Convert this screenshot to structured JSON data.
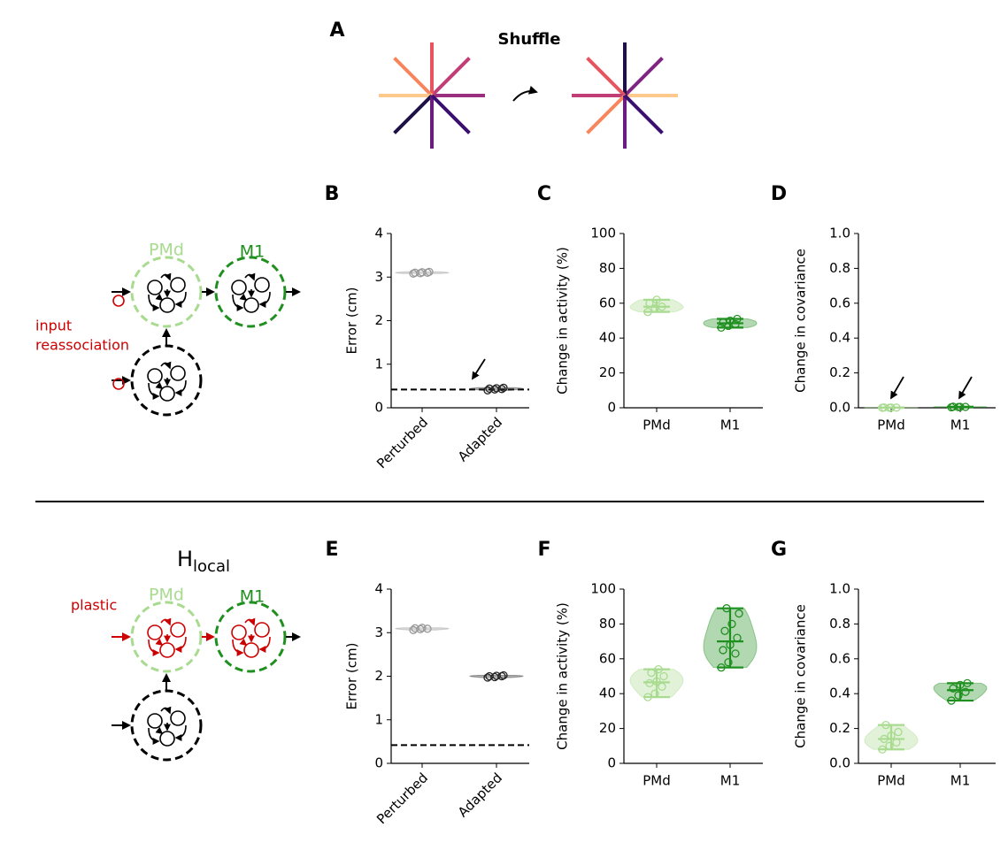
{
  "panel_labels": [
    "A",
    "B",
    "C",
    "D",
    "E",
    "F",
    "G"
  ],
  "shuffle": {
    "title": "Shuffle",
    "before_colors": [
      "#9c2e7f",
      "#c13d76",
      "#e6555f",
      "#f8865c",
      "#fec98d",
      "#1d1147",
      "#6a1c81",
      "#3b0f70"
    ],
    "after_colors": [
      "#fec98d",
      "#7e2482",
      "#1d1147",
      "#e6555f",
      "#c13d76",
      "#f8865c",
      "#6a1c81",
      "#3b0f70"
    ]
  },
  "diagrams": [
    {
      "nodes": [
        "PMd",
        "M1"
      ],
      "annotation": [
        "input",
        "reassociation"
      ]
    },
    {
      "title": "H",
      "title_subscript": "local",
      "nodes": [
        "PMd",
        "M1"
      ],
      "annotation": "plastic"
    }
  ],
  "chart_data": [
    {
      "type": "violin",
      "categories": [
        "Perturbed",
        "Adapted"
      ],
      "ylabel": "Error (cm)",
      "colors": [
        "#999999",
        "#222222"
      ],
      "values": [
        [
          3.08,
          3.09,
          3.1,
          3.1,
          3.11,
          3.12
        ],
        [
          0.4,
          0.42,
          0.43,
          0.44,
          0.45,
          0.46
        ]
      ],
      "hline": 0.42,
      "extrema": false,
      "ylim": [
        0,
        4
      ],
      "yticks": [
        0,
        1,
        2,
        3,
        4
      ]
    },
    {
      "type": "violin",
      "categories": [
        "PMd",
        "M1"
      ],
      "ylabel": "Change in activity (%)",
      "colors": [
        "#a8db8f",
        "#1f8f1f"
      ],
      "values": [
        [
          55,
          57,
          58,
          60,
          62
        ],
        [
          46,
          47,
          48,
          49,
          50,
          51
        ]
      ],
      "extrema": true,
      "ylim": [
        0,
        100
      ],
      "yticks": [
        0,
        20,
        40,
        60,
        80,
        100
      ]
    },
    {
      "type": "violin",
      "categories": [
        "PMd",
        "M1"
      ],
      "ylabel": "Change in covariance",
      "colors": [
        "#a8db8f",
        "#1f8f1f"
      ],
      "values": [
        [
          0,
          0,
          0.001,
          0.002,
          0.001
        ],
        [
          0.003,
          0.004,
          0.005,
          0.006,
          0.005
        ]
      ],
      "extrema": true,
      "ylim": [
        0,
        1
      ],
      "yticks": [
        {
          "value": 0,
          "label": "0.0"
        },
        {
          "value": 0.2,
          "label": "0.2"
        },
        {
          "value": 0.4,
          "label": "0.4"
        },
        {
          "value": 0.6,
          "label": "0.6"
        },
        {
          "value": 0.8,
          "label": "0.8"
        },
        {
          "value": 1,
          "label": "1.0"
        }
      ]
    },
    {
      "type": "violin",
      "categories": [
        "Perturbed",
        "Adapted"
      ],
      "ylabel": "Error (cm)",
      "colors": [
        "#999999",
        "#222222"
      ],
      "values": [
        [
          3.06,
          3.08,
          3.09,
          3.1,
          3.11
        ],
        [
          1.97,
          1.98,
          2.0,
          2.0,
          2.01,
          2.02
        ]
      ],
      "hline": 0.42,
      "extrema": false,
      "ylim": [
        0,
        4
      ],
      "yticks": [
        0,
        1,
        2,
        3,
        4
      ]
    },
    {
      "type": "violin",
      "categories": [
        "PMd",
        "M1"
      ],
      "ylabel": "Change in activity (%)",
      "colors": [
        "#a8db8f",
        "#1f8f1f"
      ],
      "values": [
        [
          38,
          40,
          44,
          46,
          47,
          50,
          52,
          54
        ],
        [
          55,
          58,
          63,
          65,
          68,
          72,
          76,
          80,
          86,
          89
        ]
      ],
      "extrema": true,
      "ylim": [
        0,
        100
      ],
      "yticks": [
        0,
        20,
        40,
        60,
        80,
        100
      ]
    },
    {
      "type": "violin",
      "categories": [
        "PMd",
        "M1"
      ],
      "ylabel": "Change in covariance",
      "colors": [
        "#a8db8f",
        "#1f8f1f"
      ],
      "values": [
        [
          0.08,
          0.1,
          0.12,
          0.14,
          0.16,
          0.18,
          0.22
        ],
        [
          0.36,
          0.39,
          0.41,
          0.43,
          0.45,
          0.46
        ]
      ],
      "extrema": true,
      "ylim": [
        0,
        1
      ],
      "yticks": [
        {
          "value": 0,
          "label": "0.0"
        },
        {
          "value": 0.2,
          "label": "0.2"
        },
        {
          "value": 0.4,
          "label": "0.4"
        },
        {
          "value": 0.6,
          "label": "0.6"
        },
        {
          "value": 0.8,
          "label": "0.8"
        },
        {
          "value": 1,
          "label": "1.0"
        }
      ]
    }
  ]
}
